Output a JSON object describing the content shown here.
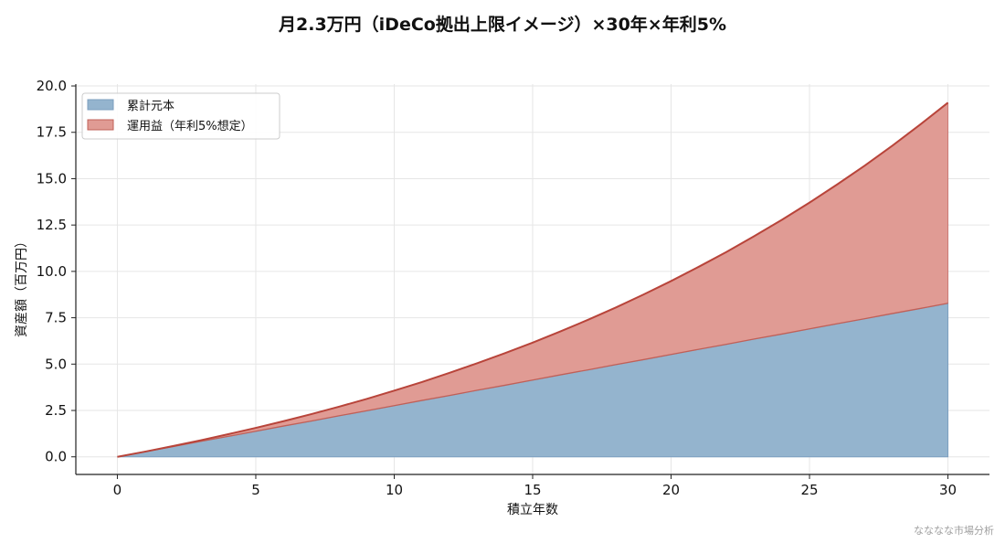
{
  "chart_data": {
    "type": "area",
    "title": "月2.3万円（iDeCo拠出上限イメージ）×30年×年利5%",
    "xlabel": "積立年数",
    "ylabel": "資産額（百万円）",
    "xlim": [
      -1.5,
      31.5
    ],
    "ylim": [
      -0.95,
      20.1
    ],
    "xticks": [
      0,
      5,
      10,
      15,
      20,
      25,
      30
    ],
    "yticks": [
      "0.0",
      "2.5",
      "5.0",
      "7.5",
      "10.0",
      "12.5",
      "15.0",
      "17.5",
      "20.0"
    ],
    "grid": true,
    "stacked": true,
    "legend_position": "top-left",
    "x": [
      0,
      1,
      2,
      3,
      4,
      5,
      6,
      7,
      8,
      9,
      10,
      11,
      12,
      13,
      14,
      15,
      16,
      17,
      18,
      19,
      20,
      21,
      22,
      23,
      24,
      25,
      26,
      27,
      28,
      29,
      30
    ],
    "series": [
      {
        "name": "累計元本",
        "color": "#94b4ce",
        "edge_color": "#7d9fbf",
        "values": [
          0.0,
          0.28,
          0.55,
          0.83,
          1.1,
          1.38,
          1.66,
          1.93,
          2.21,
          2.48,
          2.76,
          3.04,
          3.31,
          3.59,
          3.86,
          4.14,
          4.42,
          4.69,
          4.97,
          5.24,
          5.52,
          5.8,
          6.07,
          6.35,
          6.62,
          6.9,
          7.18,
          7.45,
          7.73,
          8.0,
          8.28
        ]
      },
      {
        "name": "運用益（年利5%想定）",
        "color": "#e09b94",
        "edge_color": "#c06058",
        "cumulative_total": [
          0.0,
          0.28,
          0.58,
          0.89,
          1.22,
          1.56,
          1.92,
          2.3,
          2.7,
          3.12,
          3.57,
          4.03,
          4.53,
          5.05,
          5.59,
          6.16,
          6.76,
          7.39,
          8.05,
          8.75,
          9.48,
          10.25,
          11.05,
          11.9,
          12.78,
          13.71,
          14.69,
          15.71,
          16.79,
          17.92,
          19.1
        ],
        "top_line_color": "#b8443a"
      }
    ]
  },
  "footer": {
    "watermark": "なななな市場分析"
  }
}
